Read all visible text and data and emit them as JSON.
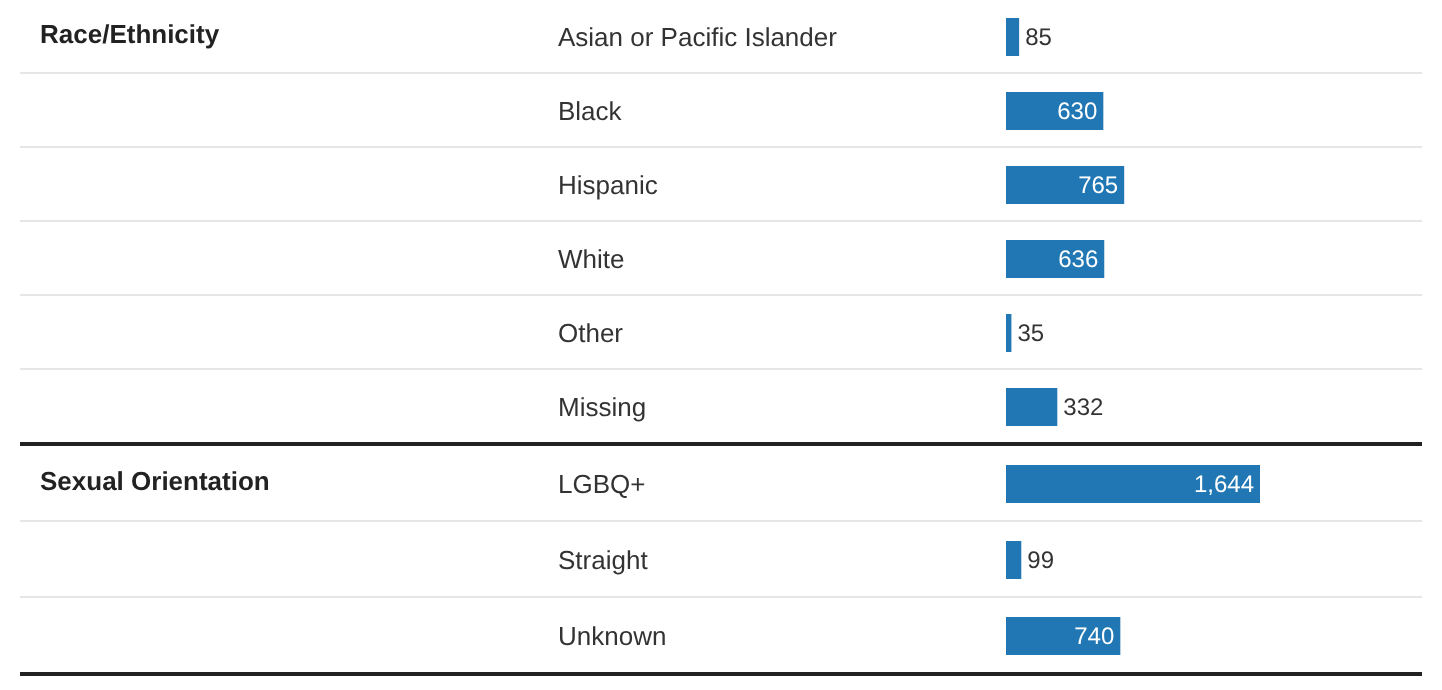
{
  "chart_data": [
    {
      "type": "bar",
      "orientation": "horizontal",
      "annotations": [
        "Race/Ethnicity"
      ],
      "categories": [
        "Asian or Pacific Islander",
        "Black",
        "Hispanic",
        "White",
        "Other",
        "Missing"
      ],
      "values": [
        85,
        630,
        765,
        636,
        35,
        332
      ],
      "value_labels": [
        "85",
        "630",
        "765",
        "636",
        "35",
        "332"
      ],
      "color": "#2077b4"
    },
    {
      "type": "bar",
      "orientation": "horizontal",
      "annotations": [
        "Sexual Orientation"
      ],
      "categories": [
        "LGBQ+",
        "Straight",
        "Unknown"
      ],
      "values": [
        1644,
        99,
        740
      ],
      "value_labels": [
        "1,644",
        "99",
        "740"
      ],
      "color": "#2077b4"
    }
  ]
}
